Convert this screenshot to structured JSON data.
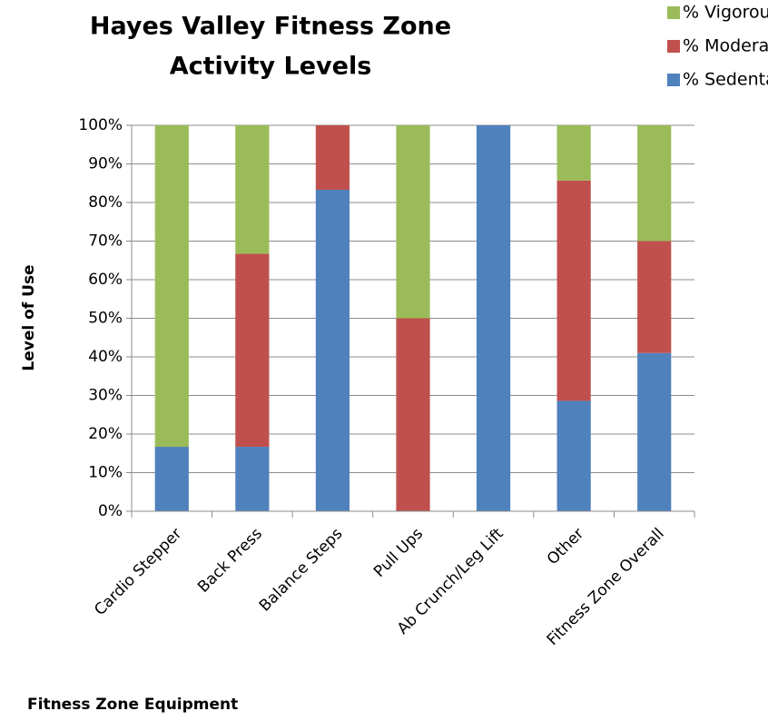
{
  "chart_data": {
    "type": "stacked_bar",
    "title": [
      "Hayes Valley Fitness Zone",
      "Activity Levels"
    ],
    "x_label": "Fitness Zone Equipment",
    "y_label": "Level of Use",
    "categories": [
      "Cardio Stepper",
      "Back Press",
      "Balance Steps",
      "Pull Ups",
      "Ab Crunch/Leg Lift",
      "Other",
      "Fitness Zone Overall"
    ],
    "series": [
      {
        "name": "% Sedentary",
        "color": "#4f81bd",
        "values": [
          16.7,
          16.7,
          83.3,
          0,
          100,
          28.6,
          41
        ]
      },
      {
        "name": "% Moderate",
        "color": "#c0504d",
        "values": [
          0,
          50,
          16.7,
          50,
          0,
          57.1,
          29
        ]
      },
      {
        "name": "% Vigorous",
        "color": "#9bbb59",
        "values": [
          83.3,
          33.3,
          0,
          50,
          0,
          14.3,
          30
        ]
      }
    ],
    "ylim": [
      0,
      100
    ],
    "yticks": [
      {
        "value": 0,
        "label": "0%"
      },
      {
        "value": 10,
        "label": "10%"
      },
      {
        "value": 20,
        "label": "20%"
      },
      {
        "value": 30,
        "label": "30%"
      },
      {
        "value": 40,
        "label": "40%"
      },
      {
        "value": 50,
        "label": "50%"
      },
      {
        "value": 60,
        "label": "60%"
      },
      {
        "value": 70,
        "label": "70%"
      },
      {
        "value": 80,
        "label": "80%"
      },
      {
        "value": 90,
        "label": "90%"
      },
      {
        "value": 100,
        "label": "100%"
      }
    ],
    "grid": true,
    "legend": "top-right"
  }
}
